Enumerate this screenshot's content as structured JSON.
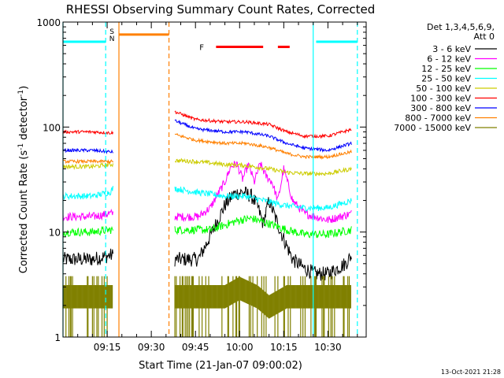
{
  "chart_data": {
    "type": "line",
    "title": "RHESSI Observing Summary Count Rates, Corrected",
    "xlabel": "Start Time (21-Jan-07 09:00:02)",
    "ylabel": "Corrected Count Rate (s",
    "ylabel_sup1": "-1",
    "ylabel_mid": " detector",
    "ylabel_sup2": "-1",
    "ylabel_end": ")",
    "y_scale": "log",
    "ylim": [
      1,
      1000
    ],
    "xlim_minutes": [
      0,
      103
    ],
    "x_ticks": [
      {
        "minute": 15,
        "label": "09:15"
      },
      {
        "minute": 30,
        "label": "09:30"
      },
      {
        "minute": 45,
        "label": "09:45"
      },
      {
        "minute": 60,
        "label": "10:00"
      },
      {
        "minute": 75,
        "label": "10:15"
      },
      {
        "minute": 90,
        "label": "10:30"
      }
    ],
    "y_ticks": [
      {
        "value": 1,
        "label": "1"
      },
      {
        "value": 10,
        "label": "10"
      },
      {
        "value": 100,
        "label": "100"
      },
      {
        "value": 1000,
        "label": "1000"
      }
    ],
    "legend": {
      "header1": "Det 1,3,4,5,6,9,",
      "header2": "Att 0",
      "position": "right"
    },
    "series": [
      {
        "name": "3 - 6 keV",
        "color": "#000000",
        "noise": 0.07,
        "segments": [
          {
            "x": [
              0,
              10,
              16,
              17
            ],
            "y": [
              5.5,
              5.5,
              6,
              6
            ]
          },
          {
            "x": [
              38,
              46,
              49,
              52,
              55,
              58,
              61,
              64,
              66,
              68,
              70,
              74,
              78,
              82,
              86,
              90,
              96,
              98
            ],
            "y": [
              5.5,
              5.5,
              8,
              12,
              18,
              23,
              24,
              22,
              18,
              12,
              20,
              10,
              5.5,
              4.5,
              4,
              4,
              5,
              6
            ]
          }
        ]
      },
      {
        "name": "6 - 12 keV",
        "color": "#ff00ff",
        "noise": 0.04,
        "segments": [
          {
            "x": [
              0,
              10,
              16,
              17
            ],
            "y": [
              14,
              14,
              15,
              15
            ]
          },
          {
            "x": [
              38,
              46,
              50,
              53,
              55,
              57,
              59,
              61,
              63,
              65,
              67,
              69,
              71,
              73,
              75,
              78,
              82,
              90,
              98
            ],
            "y": [
              14,
              14,
              17,
              24,
              30,
              42,
              45,
              32,
              44,
              30,
              45,
              34,
              30,
              20,
              40,
              20,
              15,
              13,
              15
            ]
          }
        ]
      },
      {
        "name": "12 - 25 keV",
        "color": "#00ff00",
        "noise": 0.04,
        "segments": [
          {
            "x": [
              0,
              10,
              16,
              17
            ],
            "y": [
              10,
              10,
              10.5,
              10.5
            ]
          },
          {
            "x": [
              38,
              50,
              60,
              64,
              70,
              76,
              82,
              90,
              98
            ],
            "y": [
              10.5,
              10.5,
              13,
              13.5,
              12,
              10.5,
              9.5,
              9.5,
              10.5
            ]
          }
        ]
      },
      {
        "name": "25 - 50 keV",
        "color": "#00ffff",
        "noise": 0.03,
        "segments": [
          {
            "x": [
              0,
              10,
              16,
              17
            ],
            "y": [
              22,
              22,
              24,
              26
            ]
          },
          {
            "x": [
              38,
              45,
              55,
              62,
              68,
              75,
              82,
              90,
              98
            ],
            "y": [
              26,
              24,
              22,
              22,
              20,
              18,
              17,
              17,
              20
            ]
          }
        ]
      },
      {
        "name": "50 - 100 keV",
        "color": "#cccc00",
        "noise": 0.02,
        "segments": [
          {
            "x": [
              0,
              10,
              16,
              17
            ],
            "y": [
              42,
              42,
              44,
              44
            ]
          },
          {
            "x": [
              38,
              45,
              55,
              62,
              70,
              76,
              82,
              90,
              98
            ],
            "y": [
              48,
              47,
              44,
              43,
              40,
              37,
              36,
              36,
              40
            ]
          }
        ]
      },
      {
        "name": "100 - 300 keV",
        "color": "#ff0000",
        "noise": 0.015,
        "segments": [
          {
            "x": [
              0,
              10,
              16,
              17
            ],
            "y": [
              90,
              90,
              88,
              88
            ]
          },
          {
            "x": [
              38,
              45,
              55,
              62,
              70,
              76,
              82,
              90,
              98
            ],
            "y": [
              140,
              118,
              112,
              112,
              106,
              90,
              82,
              82,
              95
            ]
          }
        ]
      },
      {
        "name": "300 - 800 keV",
        "color": "#0000ff",
        "noise": 0.015,
        "segments": [
          {
            "x": [
              0,
              10,
              16,
              17
            ],
            "y": [
              60,
              60,
              58,
              58
            ]
          },
          {
            "x": [
              38,
              45,
              55,
              62,
              70,
              76,
              82,
              90,
              98
            ],
            "y": [
              115,
              96,
              90,
              90,
              82,
              70,
              63,
              60,
              70
            ]
          }
        ]
      },
      {
        "name": "800 - 7000 keV",
        "color": "#ff8000",
        "noise": 0.015,
        "segments": [
          {
            "x": [
              0,
              10,
              16,
              17
            ],
            "y": [
              47,
              47,
              47,
              47
            ]
          },
          {
            "x": [
              38,
              45,
              55,
              62,
              70,
              76,
              82,
              90,
              98
            ],
            "y": [
              85,
              75,
              70,
              70,
              64,
              56,
              52,
              52,
              58
            ]
          }
        ]
      },
      {
        "name": "7000 - 15000 keV",
        "color": "#808000",
        "noise": 0.0,
        "segments": [
          {
            "x": [
              0,
              10,
              13,
              17
            ],
            "y": [
              2.5,
              2.5,
              2.5,
              2.5
            ]
          },
          {
            "x": [
              38,
              55,
              60,
              66,
              70,
              76,
              82,
              90,
              98
            ],
            "y": [
              2.5,
              2.5,
              3,
              2.5,
              2,
              2.5,
              2.5,
              2.5,
              2.5
            ]
          }
        ]
      }
    ],
    "flag_markers": [
      {
        "label": "S",
        "color": "#ff8000",
        "x": 18.5
      },
      {
        "label": "N",
        "color": "#00ffff",
        "x": 18.5
      }
    ],
    "vlines": [
      {
        "x": 0,
        "color": "#00ffff",
        "dashed": false
      },
      {
        "x": 14.5,
        "color": "#00ffff",
        "dashed": true
      },
      {
        "x": 19,
        "color": "#ff8000",
        "dashed": false
      },
      {
        "x": 36,
        "color": "#ff8000",
        "dashed": true
      },
      {
        "x": 85,
        "color": "#00ffff",
        "dashed": false
      },
      {
        "x": 100,
        "color": "#00ffff",
        "dashed": true
      }
    ],
    "hbars": [
      {
        "x": [
          0,
          14.5
        ],
        "y": 650,
        "color": "#00ffff"
      },
      {
        "x": [
          19,
          36
        ],
        "y": 760,
        "color": "#ff8000"
      },
      {
        "x": [
          52,
          68
        ],
        "y": 580,
        "color": "#ff0000"
      },
      {
        "x": [
          73,
          77
        ],
        "y": 580,
        "color": "#ff0000"
      },
      {
        "x": [
          86,
          100
        ],
        "y": 650,
        "color": "#00ffff"
      }
    ],
    "flare_label": {
      "text": "F",
      "color": "#ff0000",
      "x": 49.5,
      "y": 580
    }
  },
  "footer": {
    "timestamp": "13-Oct-2021 21:28"
  }
}
